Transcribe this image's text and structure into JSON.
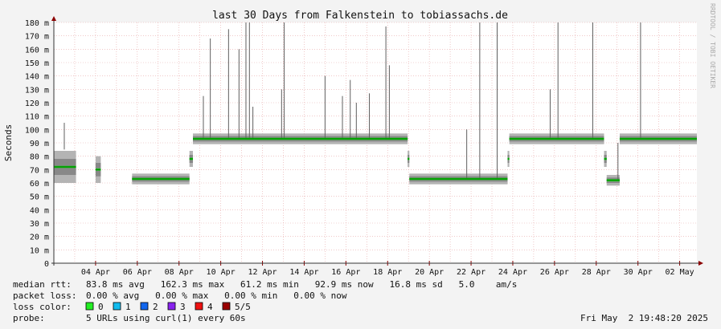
{
  "chart_data": {
    "type": "line",
    "title": "last 30 Days from Falkenstein to tobiassachs.de",
    "ylabel": "Seconds",
    "ylim": [
      0,
      180
    ],
    "y_tick_step": 10,
    "y_tick_suffix": " m",
    "xlim": [
      "2025-04-02",
      "2025-05-02T19:48"
    ],
    "x_ticks": [
      "04 Apr",
      "06 Apr",
      "08 Apr",
      "10 Apr",
      "12 Apr",
      "14 Apr",
      "16 Apr",
      "18 Apr",
      "20 Apr",
      "22 Apr",
      "24 Apr",
      "26 Apr",
      "28 Apr",
      "30 Apr",
      "02 May"
    ],
    "x_tick_dates": [
      "2025-04-04",
      "2025-04-06",
      "2025-04-08",
      "2025-04-10",
      "2025-04-12",
      "2025-04-14",
      "2025-04-16",
      "2025-04-18",
      "2025-04-20",
      "2025-04-22",
      "2025-04-24",
      "2025-04-26",
      "2025-04-28",
      "2025-04-30",
      "2025-05-02"
    ],
    "grid": true,
    "side_label": "RRDTOOL / TOBI OETIKER",
    "colors": {
      "background": "#f3f3f3",
      "canvas": "#ffffff",
      "grid": "#e6a7a7",
      "axis": "#333333",
      "axis_arrow": "#8b0000",
      "smoke": "#888888",
      "smoke_light": "#b4b4b4",
      "median": "#00cc00",
      "median_dark": "#0a5e0a",
      "spike": "#5f5f5f"
    },
    "median_segments": [
      {
        "from": "2025-04-02T00:00",
        "to": "2025-04-03T01:30",
        "median": 72,
        "spread": 6
      },
      {
        "from": "2025-04-04T00:00",
        "to": "2025-04-04T06:00",
        "median": 70,
        "spread": 5
      },
      {
        "from": "2025-04-05T18:00",
        "to": "2025-04-08T12:00",
        "median": 63,
        "spread": 2
      },
      {
        "from": "2025-04-08T12:00",
        "to": "2025-04-08T16:00",
        "median": 78,
        "spread": 3
      },
      {
        "from": "2025-04-08T16:00",
        "to": "2025-04-18T23:00",
        "median": 93,
        "spread": 2
      },
      {
        "from": "2025-04-18T23:00",
        "to": "2025-04-19T01:00",
        "median": 78,
        "spread": 3
      },
      {
        "from": "2025-04-19T01:00",
        "to": "2025-04-23T18:00",
        "median": 63,
        "spread": 2
      },
      {
        "from": "2025-04-23T18:00",
        "to": "2025-04-23T20:00",
        "median": 78,
        "spread": 3
      },
      {
        "from": "2025-04-23T20:00",
        "to": "2025-04-28T09:00",
        "median": 93,
        "spread": 2
      },
      {
        "from": "2025-04-28T09:00",
        "to": "2025-04-28T12:00",
        "median": 78,
        "spread": 3
      },
      {
        "from": "2025-04-28T12:00",
        "to": "2025-04-29T03:00",
        "median": 62,
        "spread": 2
      },
      {
        "from": "2025-04-29T03:00",
        "to": "2025-05-02T19:48",
        "median": 93,
        "spread": 2
      }
    ],
    "spikes": [
      {
        "date": "2025-04-02T12:00",
        "min": 85,
        "max": 105
      },
      {
        "date": "2025-04-09T04:00",
        "min": 93,
        "max": 125
      },
      {
        "date": "2025-04-09T12:00",
        "min": 93,
        "max": 168
      },
      {
        "date": "2025-04-10T09:00",
        "min": 93,
        "max": 175
      },
      {
        "date": "2025-04-10T21:00",
        "min": 93,
        "max": 160
      },
      {
        "date": "2025-04-11T05:00",
        "min": 93,
        "max": 180
      },
      {
        "date": "2025-04-11T09:00",
        "min": 93,
        "max": 180
      },
      {
        "date": "2025-04-11T13:00",
        "min": 93,
        "max": 117
      },
      {
        "date": "2025-04-12T22:00",
        "min": 93,
        "max": 130
      },
      {
        "date": "2025-04-13T01:00",
        "min": 93,
        "max": 180
      },
      {
        "date": "2025-04-15T00:00",
        "min": 93,
        "max": 140
      },
      {
        "date": "2025-04-15T20:00",
        "min": 93,
        "max": 125
      },
      {
        "date": "2025-04-16T05:00",
        "min": 93,
        "max": 137
      },
      {
        "date": "2025-04-16T12:00",
        "min": 93,
        "max": 120
      },
      {
        "date": "2025-04-17T03:00",
        "min": 93,
        "max": 127
      },
      {
        "date": "2025-04-17T22:00",
        "min": 93,
        "max": 177
      },
      {
        "date": "2025-04-18T02:00",
        "min": 93,
        "max": 148
      },
      {
        "date": "2025-04-21T19:00",
        "min": 63,
        "max": 100
      },
      {
        "date": "2025-04-22T10:00",
        "min": 63,
        "max": 180
      },
      {
        "date": "2025-04-23T06:00",
        "min": 63,
        "max": 180
      },
      {
        "date": "2025-04-25T19:00",
        "min": 93,
        "max": 130
      },
      {
        "date": "2025-04-26T04:00",
        "min": 93,
        "max": 180
      },
      {
        "date": "2025-04-27T20:00",
        "min": 93,
        "max": 180
      },
      {
        "date": "2025-04-29T01:00",
        "min": 62,
        "max": 90
      },
      {
        "date": "2025-04-30T03:00",
        "min": 93,
        "max": 180
      }
    ]
  },
  "legend": {
    "median_rtt": {
      "label": "median rtt:",
      "text": "83.8 ms avg   162.3 ms max   61.2 ms min   92.9 ms now   16.8 ms sd   5.0    am/s"
    },
    "packet_loss": {
      "label": "packet loss:",
      "text": "0.00 % avg   0.00 % max   0.00 % min   0.00 % now"
    },
    "loss_color": {
      "label": "loss color:",
      "items": [
        {
          "label": "0",
          "color": "#22ee22"
        },
        {
          "label": "1",
          "color": "#11bbee"
        },
        {
          "label": "2",
          "color": "#1166ee"
        },
        {
          "label": "3",
          "color": "#8822ee"
        },
        {
          "label": "4",
          "color": "#ee1111"
        },
        {
          "label": "5/5",
          "color": "#990000"
        }
      ]
    },
    "probe": {
      "label": "probe:",
      "text": "5 URLs using curl(1) every 60s"
    },
    "timestamp": "Fri May  2 19:48:20 2025"
  }
}
